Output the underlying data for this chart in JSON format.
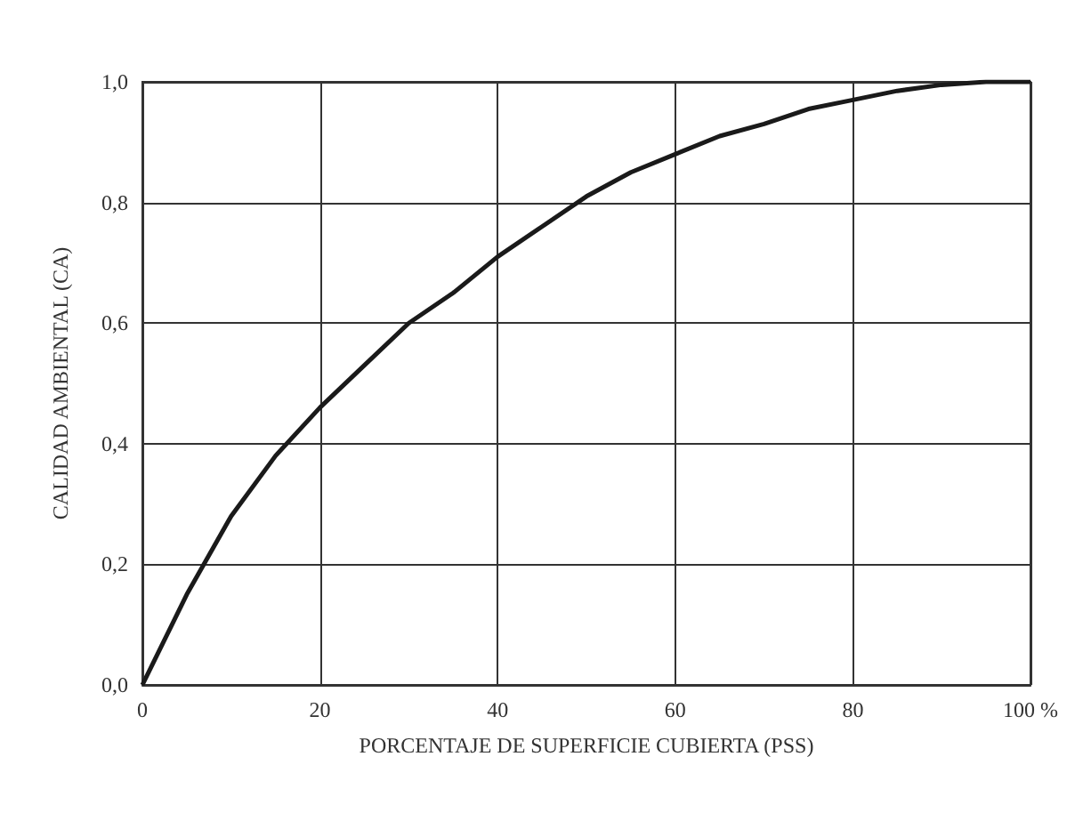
{
  "chart_data": {
    "type": "line",
    "xlabel": "PORCENTAJE DE SUPERFICIE CUBIERTA (PSS)",
    "ylabel": "CALIDAD AMBIENTAL (CA)",
    "x": [
      0,
      5,
      10,
      15,
      20,
      25,
      30,
      35,
      40,
      45,
      50,
      55,
      60,
      65,
      70,
      75,
      80,
      85,
      90,
      95,
      100
    ],
    "series": [
      {
        "color": "#1a1a1a",
        "values": [
          0,
          0.15,
          0.28,
          0.38,
          0.46,
          0.53,
          0.6,
          0.65,
          0.71,
          0.76,
          0.81,
          0.85,
          0.88,
          0.91,
          0.93,
          0.955,
          0.97,
          0.985,
          0.995,
          1,
          1
        ]
      }
    ],
    "xlim": [
      0,
      100
    ],
    "xticks": [
      0,
      20,
      40,
      60,
      80,
      {
        "value": 100,
        "label": "100 %"
      }
    ],
    "ylim": [
      0,
      1
    ],
    "yticks": [
      {
        "value": 0,
        "label": "0,0"
      },
      {
        "value": 0.2,
        "label": "0,2"
      },
      {
        "value": 0.4,
        "label": "0,4"
      },
      {
        "value": 0.6,
        "label": "0,6"
      },
      {
        "value": 0.8,
        "label": "0,8"
      },
      {
        "value": 1,
        "label": "1,0"
      }
    ],
    "grid": true,
    "marker": "none",
    "line_style": "solid"
  }
}
